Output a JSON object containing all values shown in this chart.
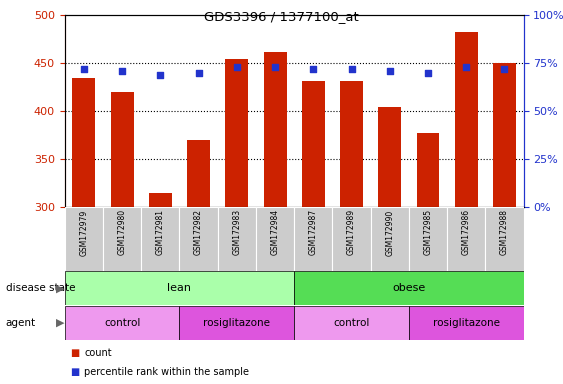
{
  "title": "GDS3396 / 1377100_at",
  "samples": [
    "GSM172979",
    "GSM172980",
    "GSM172981",
    "GSM172982",
    "GSM172983",
    "GSM172984",
    "GSM172987",
    "GSM172989",
    "GSM172990",
    "GSM172985",
    "GSM172986",
    "GSM172988"
  ],
  "counts": [
    435,
    420,
    315,
    370,
    455,
    462,
    432,
    432,
    405,
    377,
    483,
    450
  ],
  "percentiles": [
    72,
    71,
    69,
    70,
    73,
    73,
    72,
    72,
    71,
    70,
    73,
    72
  ],
  "ylim_left": [
    300,
    500
  ],
  "ylim_right": [
    0,
    100
  ],
  "yticks_left": [
    300,
    350,
    400,
    450,
    500
  ],
  "yticks_right": [
    0,
    25,
    50,
    75,
    100
  ],
  "bar_color": "#cc2200",
  "dot_color": "#2233cc",
  "bar_bottom": 300,
  "disease_state_color_lean": "#aaffaa",
  "disease_state_color_obese": "#55dd55",
  "agent_color_light": "#ee99ee",
  "agent_color_dark": "#dd55dd",
  "legend_count_label": "count",
  "legend_percentile_label": "percentile rank within the sample",
  "tick_label_color_left": "#cc2200",
  "tick_label_color_right": "#2233cc",
  "background_color": "#ffffff",
  "sample_bg_color": "#cccccc",
  "grid_dotted_values": [
    350,
    400,
    450
  ],
  "right_axis_labels": [
    "0%",
    "25%",
    "50%",
    "75%",
    "100%"
  ]
}
